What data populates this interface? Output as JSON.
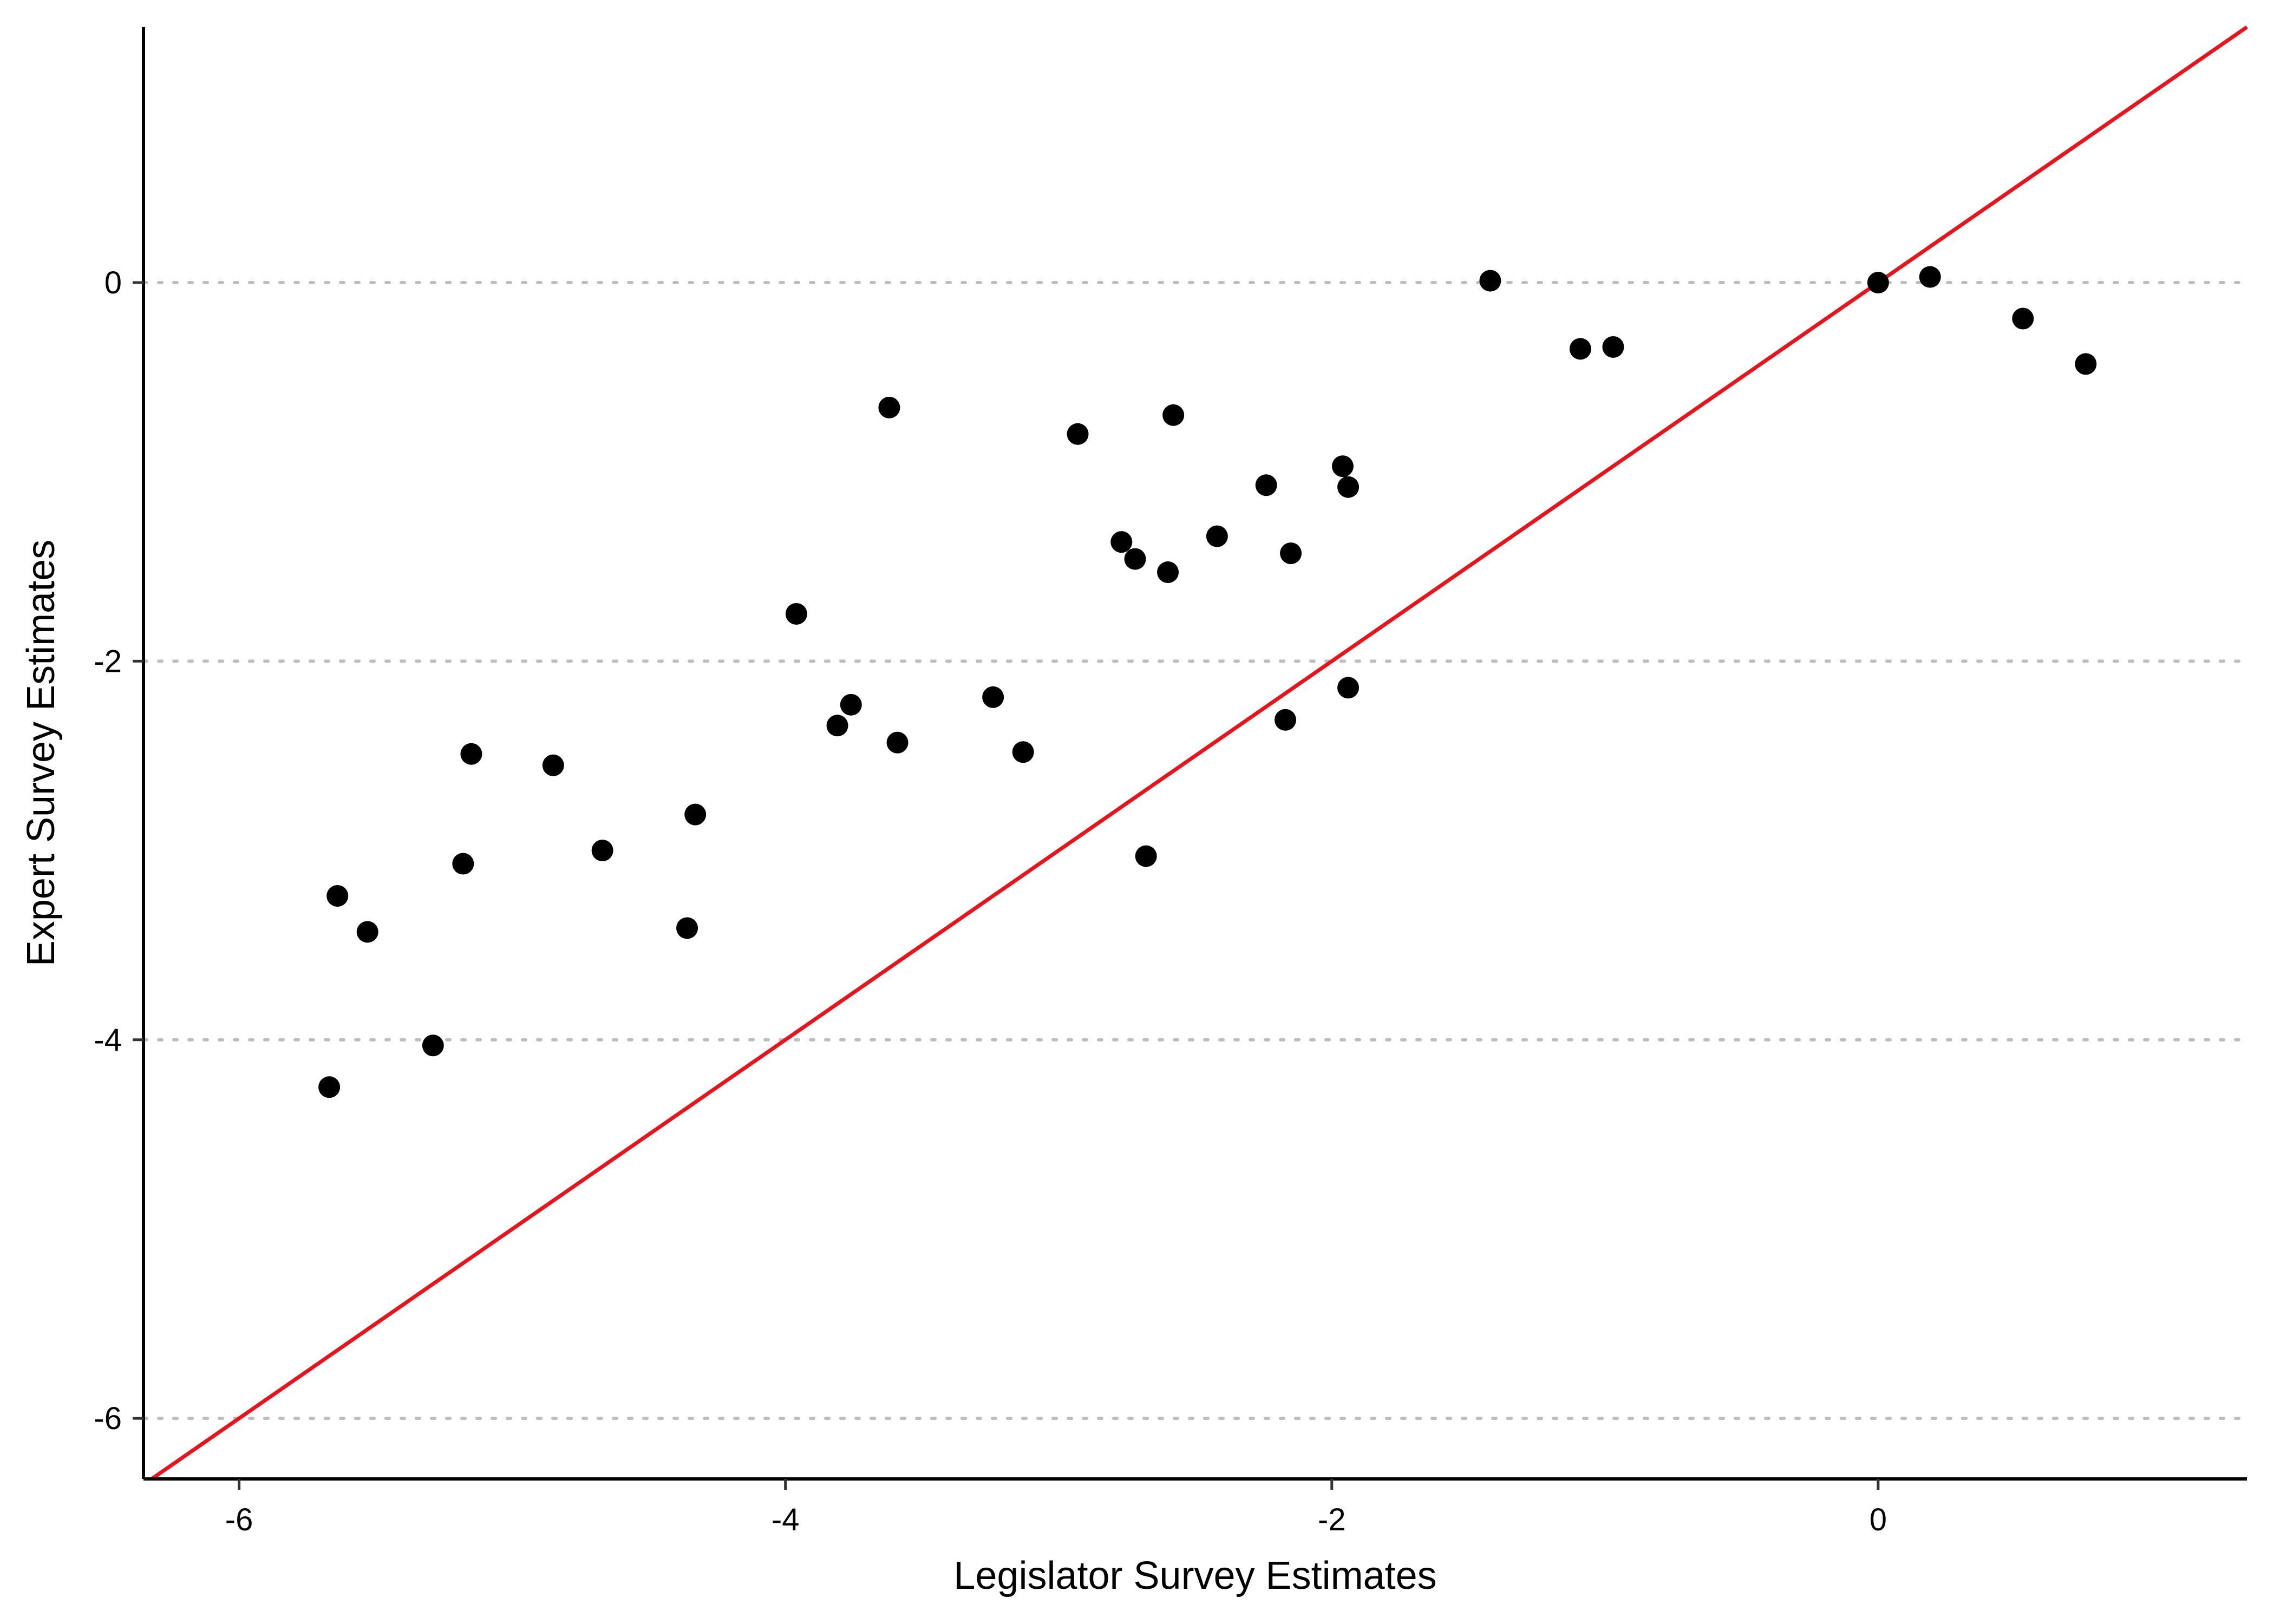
{
  "chart_data": {
    "type": "scatter",
    "xlabel": "Legislator Survey Estimates",
    "ylabel": "Expert Survey Estimates",
    "xlim": [
      -6.35,
      1.35
    ],
    "ylim": [
      -6.32,
      1.35
    ],
    "x_ticks": [
      -6,
      -4,
      -2,
      0
    ],
    "x_tick_labels": [
      "-6",
      "-4",
      "-2",
      "0"
    ],
    "y_ticks": [
      0,
      -2,
      -4,
      -6
    ],
    "y_tick_labels": [
      "0",
      "-2",
      "-4",
      "-6"
    ],
    "gridlines": "horizontal dotted at y ticks",
    "reference_line": {
      "type": "identity",
      "slope": 1,
      "intercept": 0,
      "color": "#e8141b"
    },
    "point_color": "#000000",
    "grid_color": "#bdbdbd",
    "points": [
      {
        "x": -5.67,
        "y": -4.25
      },
      {
        "x": -5.64,
        "y": -3.24
      },
      {
        "x": -5.53,
        "y": -3.43
      },
      {
        "x": -5.29,
        "y": -4.03
      },
      {
        "x": -5.18,
        "y": -3.07
      },
      {
        "x": -5.15,
        "y": -2.49
      },
      {
        "x": -4.85,
        "y": -2.55
      },
      {
        "x": -4.67,
        "y": -3.0
      },
      {
        "x": -4.36,
        "y": -3.41
      },
      {
        "x": -4.33,
        "y": -2.81
      },
      {
        "x": -3.96,
        "y": -1.75
      },
      {
        "x": -3.81,
        "y": -2.34
      },
      {
        "x": -3.76,
        "y": -2.23
      },
      {
        "x": -3.62,
        "y": -0.66
      },
      {
        "x": -3.59,
        "y": -2.43
      },
      {
        "x": -3.24,
        "y": -2.19
      },
      {
        "x": -3.13,
        "y": -2.48
      },
      {
        "x": -2.93,
        "y": -0.8
      },
      {
        "x": -2.77,
        "y": -1.37
      },
      {
        "x": -2.72,
        "y": -1.46
      },
      {
        "x": -2.68,
        "y": -3.03
      },
      {
        "x": -2.6,
        "y": -1.53
      },
      {
        "x": -2.58,
        "y": -0.7
      },
      {
        "x": -2.42,
        "y": -1.34
      },
      {
        "x": -2.24,
        "y": -1.07
      },
      {
        "x": -2.17,
        "y": -2.31
      },
      {
        "x": -2.15,
        "y": -1.43
      },
      {
        "x": -1.96,
        "y": -0.97
      },
      {
        "x": -1.94,
        "y": -1.08
      },
      {
        "x": -1.94,
        "y": -2.14
      },
      {
        "x": -1.42,
        "y": 0.01
      },
      {
        "x": -1.09,
        "y": -0.35
      },
      {
        "x": -0.97,
        "y": -0.34
      },
      {
        "x": 0.0,
        "y": 0.0
      },
      {
        "x": 0.19,
        "y": 0.03
      },
      {
        "x": 0.53,
        "y": -0.19
      },
      {
        "x": 0.76,
        "y": -0.43
      }
    ]
  }
}
